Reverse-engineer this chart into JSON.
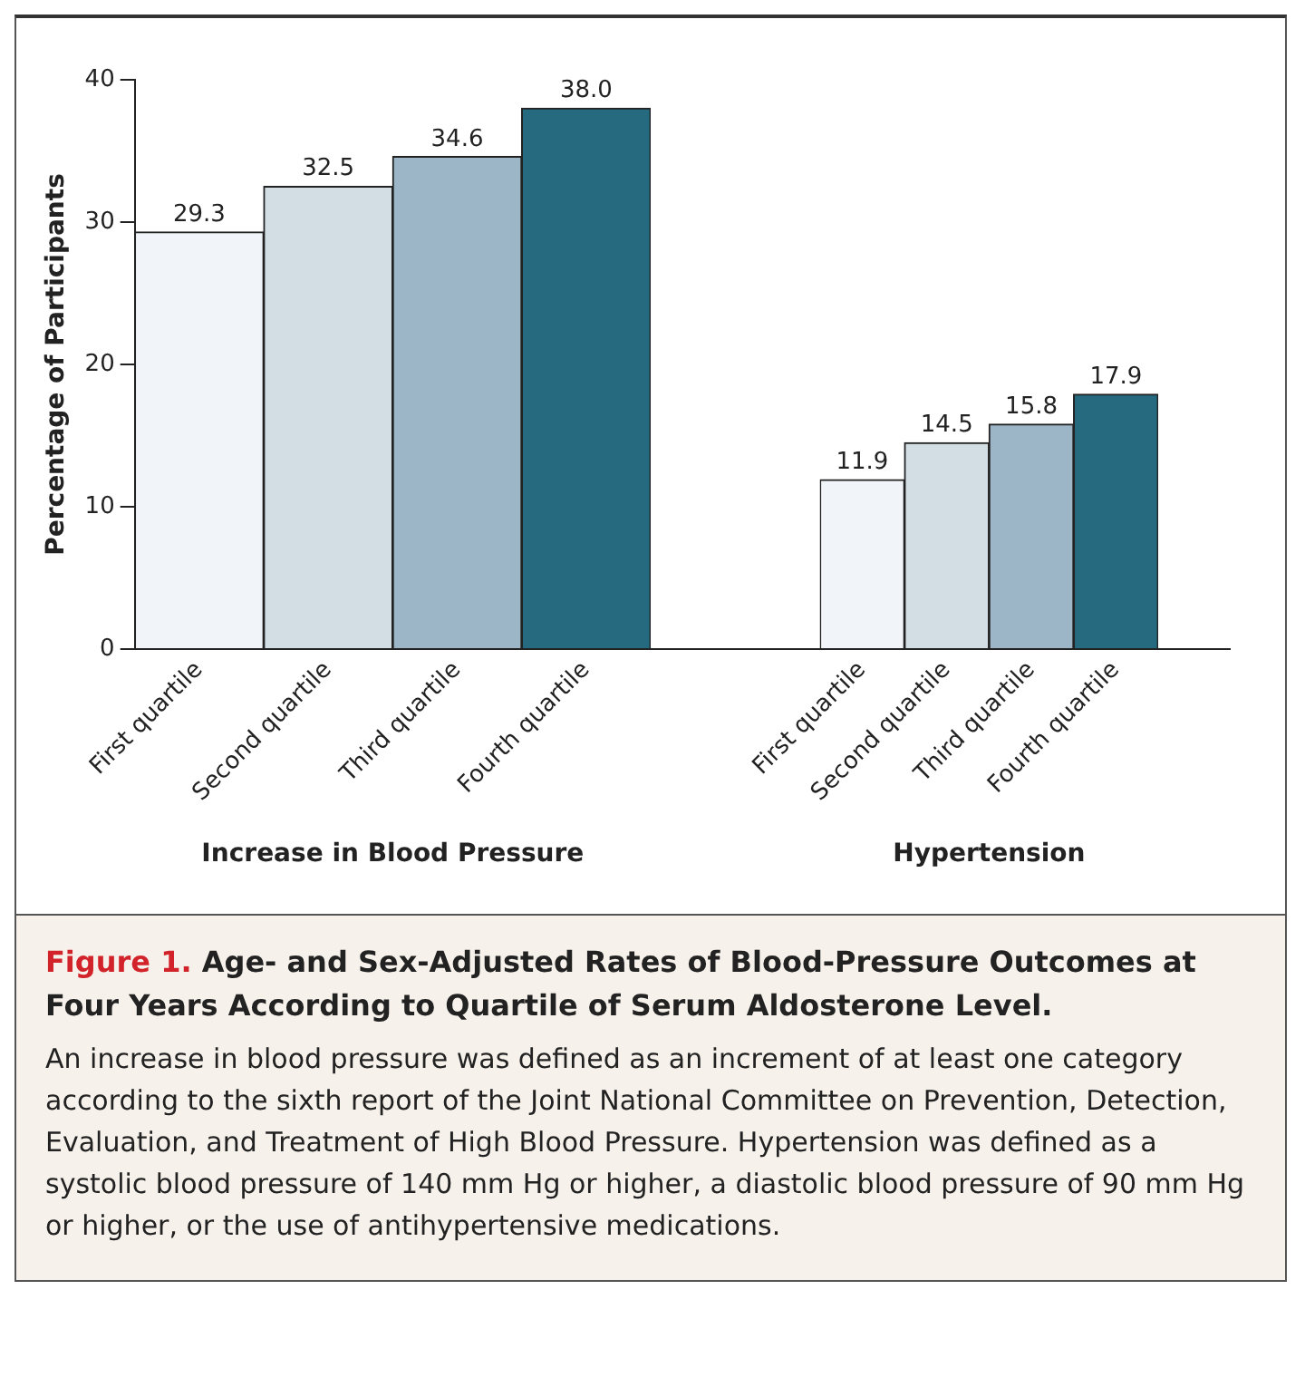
{
  "chart_data": [
    {
      "type": "bar",
      "title": "Figure 1. Age- and Sex-Adjusted Rates of Blood-Pressure Outcomes at Four Years According to Quartile of Serum Aldosterone Level.",
      "annotations": [
        "An increase in blood pressure was defined as an increment of at least one category according to the sixth report of the Joint National Committee on Prevention, Detection, Evaluation, and Treatment of High Blood Pressure. Hypertension was defined as a systolic blood pressure of 140 mm Hg or higher, a diastolic blood pressure of 90 mm Hg or higher, or the use of antihypertensive medications."
      ],
      "ylabel": "Percentage of Participants",
      "xlabel": "Increase in Blood Pressure",
      "categories": [
        "First quartile",
        "Second quartile",
        "Third quartile",
        "Fourth quartile"
      ],
      "values": [
        29.3,
        32.5,
        34.6,
        38.0
      ],
      "value_labels": [
        "29.3",
        "32.5",
        "34.6",
        "38.0"
      ],
      "colors": [
        "#f1f4f8",
        "#d3dde4",
        "#9db6c7",
        "#266a80"
      ],
      "ylim": [
        0,
        40
      ],
      "yticks": [
        0,
        10,
        20,
        30,
        40
      ],
      "grid": false,
      "legend": false
    },
    {
      "type": "bar",
      "xlabel": "Hypertension",
      "categories": [
        "First quartile",
        "Second quartile",
        "Third quartile",
        "Fourth quartile"
      ],
      "values": [
        11.9,
        14.5,
        15.8,
        17.9
      ],
      "value_labels": [
        "11.9",
        "14.5",
        "15.8",
        "17.9"
      ],
      "colors": [
        "#f1f4f8",
        "#d3dde4",
        "#9db6c7",
        "#266a80"
      ],
      "ylim": [
        0,
        40
      ],
      "tick_labels": "x",
      "grid": false,
      "legend": false
    }
  ]
}
